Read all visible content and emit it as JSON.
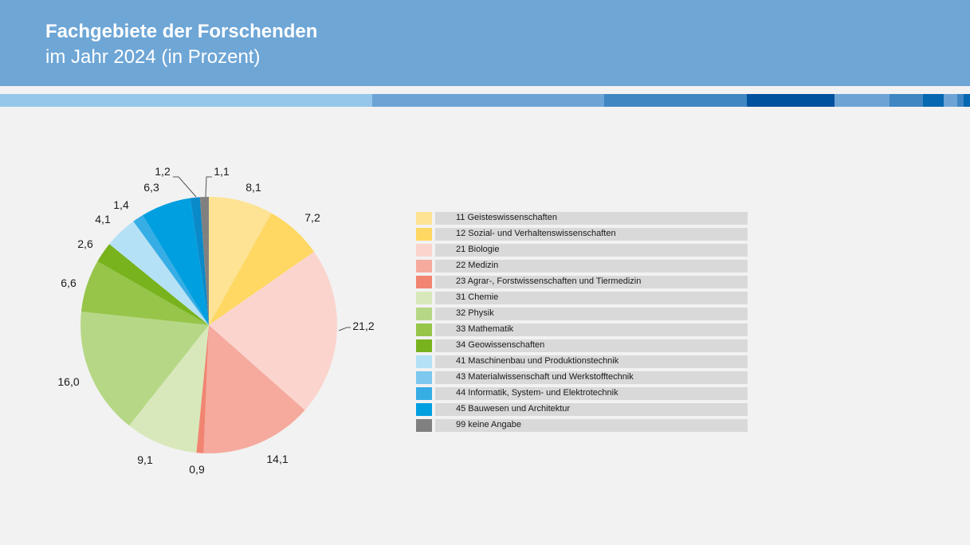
{
  "header": {
    "title": "Fachgebiete der Forschenden",
    "subtitle": "im Jahr 2024 (in Prozent)",
    "background": "#6ea6d6"
  },
  "stripe_colors": [
    "#95c7ea",
    "#6ca4d6",
    "#3f86c3",
    "#00519e",
    "#6ca4d6",
    "#3f86c3",
    "#0568b0",
    "#6ca4d6",
    "#3f86c3",
    "#0568b0"
  ],
  "chart_data": {
    "type": "pie",
    "title": "Fachgebiete der Forschenden im Jahr 2024 (in Prozent)",
    "legend_position": "right",
    "start": "top, clockwise",
    "slices": [
      {
        "label": "11 Geisteswissenschaften",
        "value": 8.1,
        "value_label": "8,1",
        "color": "#fde393",
        "legend_color": "#fde393"
      },
      {
        "label": "12 Sozial- und Verhaltenswissenschaften",
        "value": 7.2,
        "value_label": "7,2",
        "color": "#fed862",
        "legend_color": "#fed862"
      },
      {
        "label": "21 Biologie",
        "value": 21.2,
        "value_label": "21,2",
        "color": "#fbd4ce",
        "legend_color": "#fbd4ce"
      },
      {
        "label": "22 Medizin",
        "value": 14.1,
        "value_label": "14,1",
        "color": "#f5aa9d",
        "legend_color": "#f5aa9d"
      },
      {
        "label": "23 Agrar-, Forstwissenschaften und Tiermedizin",
        "value": 0.9,
        "value_label": "0,9",
        "color": "#f18572",
        "legend_color": "#f18572"
      },
      {
        "label": "31 Chemie",
        "value": 9.1,
        "value_label": "9,1",
        "color": "#d8e8bb",
        "legend_color": "#d8e8bb"
      },
      {
        "label": "32 Physik",
        "value": 16.0,
        "value_label": "16,0",
        "color": "#b6d886",
        "legend_color": "#b6d886"
      },
      {
        "label": "33 Mathematik",
        "value": 6.6,
        "value_label": "6,6",
        "color": "#96c54a",
        "legend_color": "#96c54a"
      },
      {
        "label": "34 Geowissenschaften",
        "value": 2.6,
        "value_label": "2,6",
        "color": "#78b31e",
        "legend_color": "#78b31e"
      },
      {
        "label": "41 Maschinenbau und Produktionstechnik",
        "value": 4.1,
        "value_label": "4,1",
        "color": "#b5e1f6",
        "legend_color": "#b5e1f6"
      },
      {
        "label": "43 Materialwissenschaft und Werkstofftechnik",
        "value": 1.4,
        "value_label": "1,4",
        "color": "#36ade5",
        "legend_color": "#7cc8ee"
      },
      {
        "label": "44 Informatik, System- und Elektrotechnik",
        "value": 6.3,
        "value_label": "6,3",
        "color": "#009fe0",
        "legend_color": "#36ade5"
      },
      {
        "label": "45 Bauwesen und Architektur",
        "value": 1.2,
        "value_label": "1,2",
        "color": "#0a8ac8",
        "legend_color": "#009fe0"
      },
      {
        "label": "99 keine Angabe",
        "value": 1.1,
        "value_label": "1,1",
        "color": "#808080",
        "legend_color": "#808080"
      }
    ]
  }
}
